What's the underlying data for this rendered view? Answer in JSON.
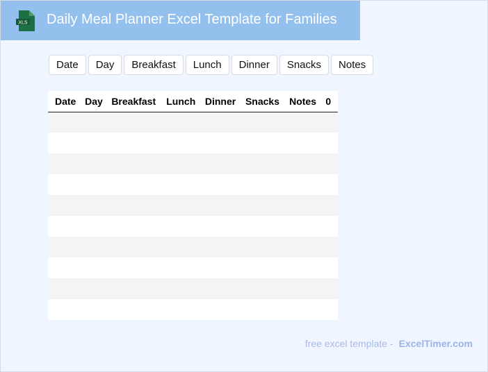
{
  "header": {
    "title": "Daily Meal Planner Excel Template for Families",
    "logo_text": "XLS",
    "logo_color": "#1d7044"
  },
  "buttons": [
    "Date",
    "Day",
    "Breakfast",
    "Lunch",
    "Dinner",
    "Snacks",
    "Notes"
  ],
  "table": {
    "columns": [
      "Date",
      "Day",
      "Breakfast",
      "Lunch",
      "Dinner",
      "Snacks",
      "Notes",
      "0"
    ],
    "row_count": 10
  },
  "footer": {
    "text": "free excel template -",
    "brand": "ExcelTimer.com"
  }
}
